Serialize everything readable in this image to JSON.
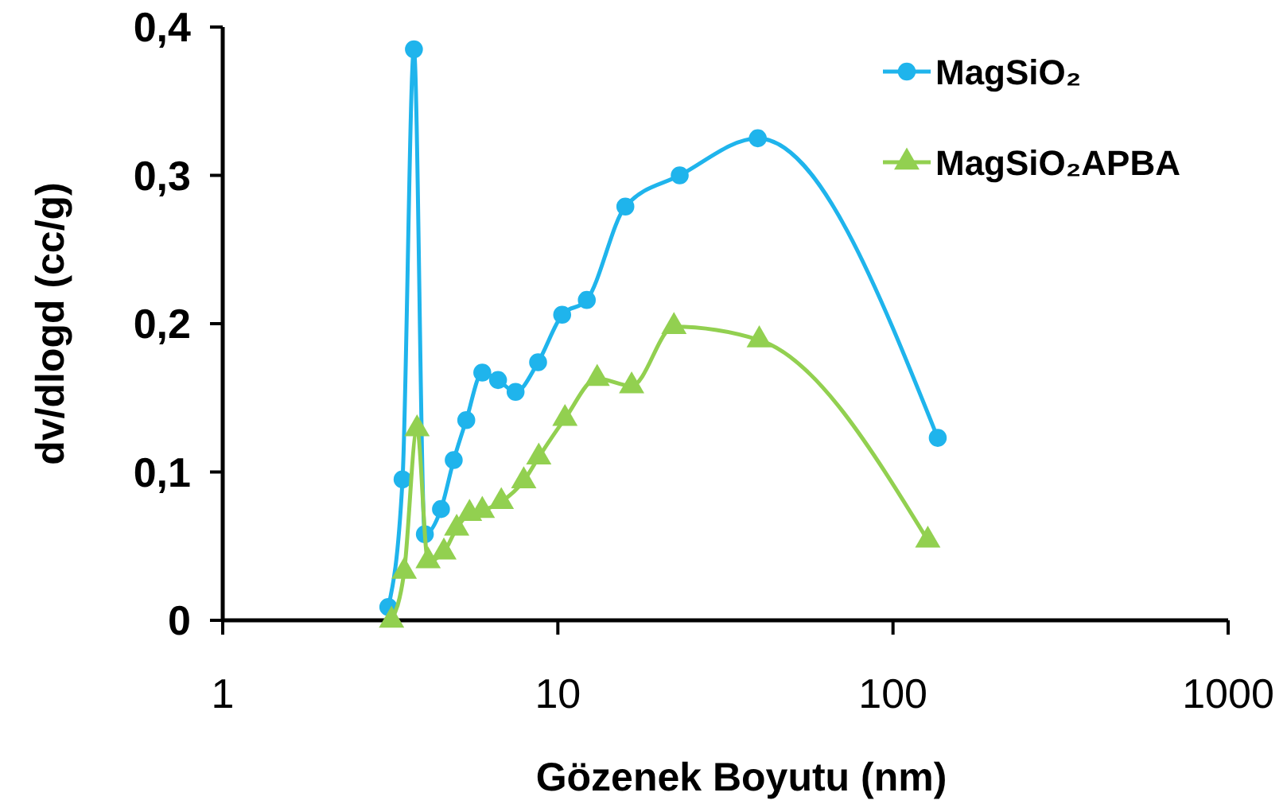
{
  "chart_data": {
    "type": "line",
    "xlabel": "Gözenek Boyutu (nm)",
    "ylabel": "dv/dlogd (cc/g)",
    "log": "x",
    "xlim": [
      1,
      1000
    ],
    "xticks": [
      1,
      10,
      100,
      1000
    ],
    "ylim": [
      0,
      0.4
    ],
    "yticks": [
      {
        "value": 0,
        "label": "0"
      },
      {
        "value": 0.1,
        "label": "0,1"
      },
      {
        "value": 0.2,
        "label": "0,2"
      },
      {
        "value": 0.3,
        "label": "0,3"
      },
      {
        "value": 0.4,
        "label": "0,4"
      }
    ],
    "grid": false,
    "legend": "top right",
    "series": [
      {
        "name": "MagSiO₂",
        "color": "#1fb4ec",
        "marker": "circle",
        "x": [
          3.12,
          3.44,
          3.72,
          4.01,
          4.48,
          4.89,
          5.33,
          5.95,
          6.63,
          7.48,
          8.73,
          10.3,
          12.2,
          15.9,
          23.1,
          39.5,
          136
        ],
        "values": [
          0.009,
          0.095,
          0.385,
          0.058,
          0.075,
          0.108,
          0.135,
          0.167,
          0.162,
          0.154,
          0.174,
          0.206,
          0.216,
          0.279,
          0.3,
          0.325,
          0.123
        ]
      },
      {
        "name": "MagSiO₂APBA",
        "color": "#92d050",
        "marker": "triangle",
        "x": [
          3.19,
          3.48,
          3.8,
          4.1,
          4.57,
          4.99,
          5.45,
          5.95,
          6.78,
          7.91,
          8.77,
          10.5,
          13.1,
          16.6,
          22.2,
          39.9,
          127
        ],
        "values": [
          0,
          0.033,
          0.129,
          0.04,
          0.046,
          0.062,
          0.072,
          0.074,
          0.08,
          0.094,
          0.11,
          0.136,
          0.163,
          0.158,
          0.198,
          0.189,
          0.054
        ]
      }
    ]
  }
}
